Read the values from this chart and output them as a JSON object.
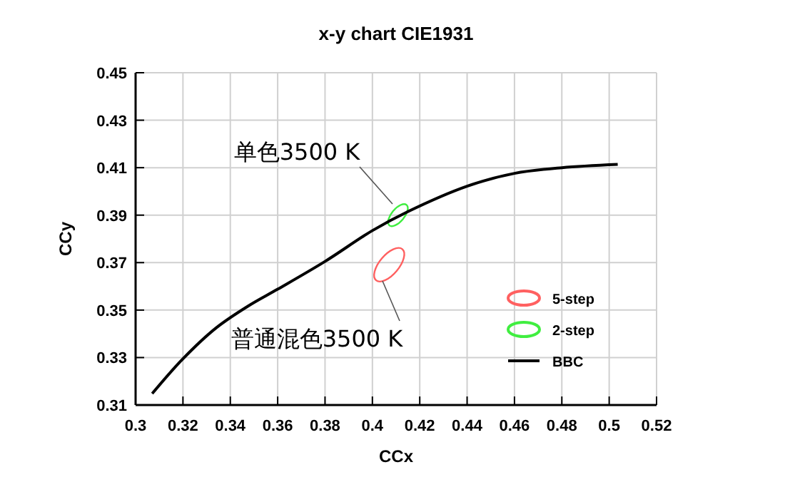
{
  "chart_data": {
    "type": "line",
    "title": "x-y chart CIE1931",
    "xlabel": "CCx",
    "ylabel": "CCy",
    "xlim": [
      0.3,
      0.52
    ],
    "xticks": [
      0.3,
      0.32,
      0.34,
      0.36,
      0.38,
      0.4,
      0.42,
      0.44,
      0.46,
      0.48,
      0.5,
      0.52
    ],
    "ylim": [
      0.31,
      0.45
    ],
    "yticks": [
      0.31,
      0.33,
      0.35,
      0.37,
      0.39,
      0.41,
      0.43,
      0.45
    ],
    "grid": true,
    "legend": "bottom right",
    "line_style": "solid",
    "series": [
      {
        "name": "5-step",
        "type": "bubble",
        "color": "#ff6060",
        "x": [
          0.4071
        ],
        "values": [
          0.3691
        ],
        "sizes": [
          1
        ]
      },
      {
        "name": "2-step",
        "type": "bubble",
        "color": "#40ee40",
        "x": [
          0.4108
        ],
        "values": [
          0.39
        ],
        "sizes": [
          0.43
        ]
      },
      {
        "name": "BBC",
        "color": "#000000",
        "x": [
          0.307,
          0.32,
          0.334,
          0.348,
          0.36,
          0.38,
          0.4,
          0.415,
          0.44,
          0.46,
          0.48,
          0.5036
        ],
        "values": [
          0.3148,
          0.3295,
          0.3425,
          0.352,
          0.3588,
          0.3705,
          0.3835,
          0.3915,
          0.4022,
          0.4076,
          0.41,
          0.4114
        ]
      }
    ],
    "annotations": [
      "单色3500 K",
      "普通混色3500 K"
    ]
  }
}
